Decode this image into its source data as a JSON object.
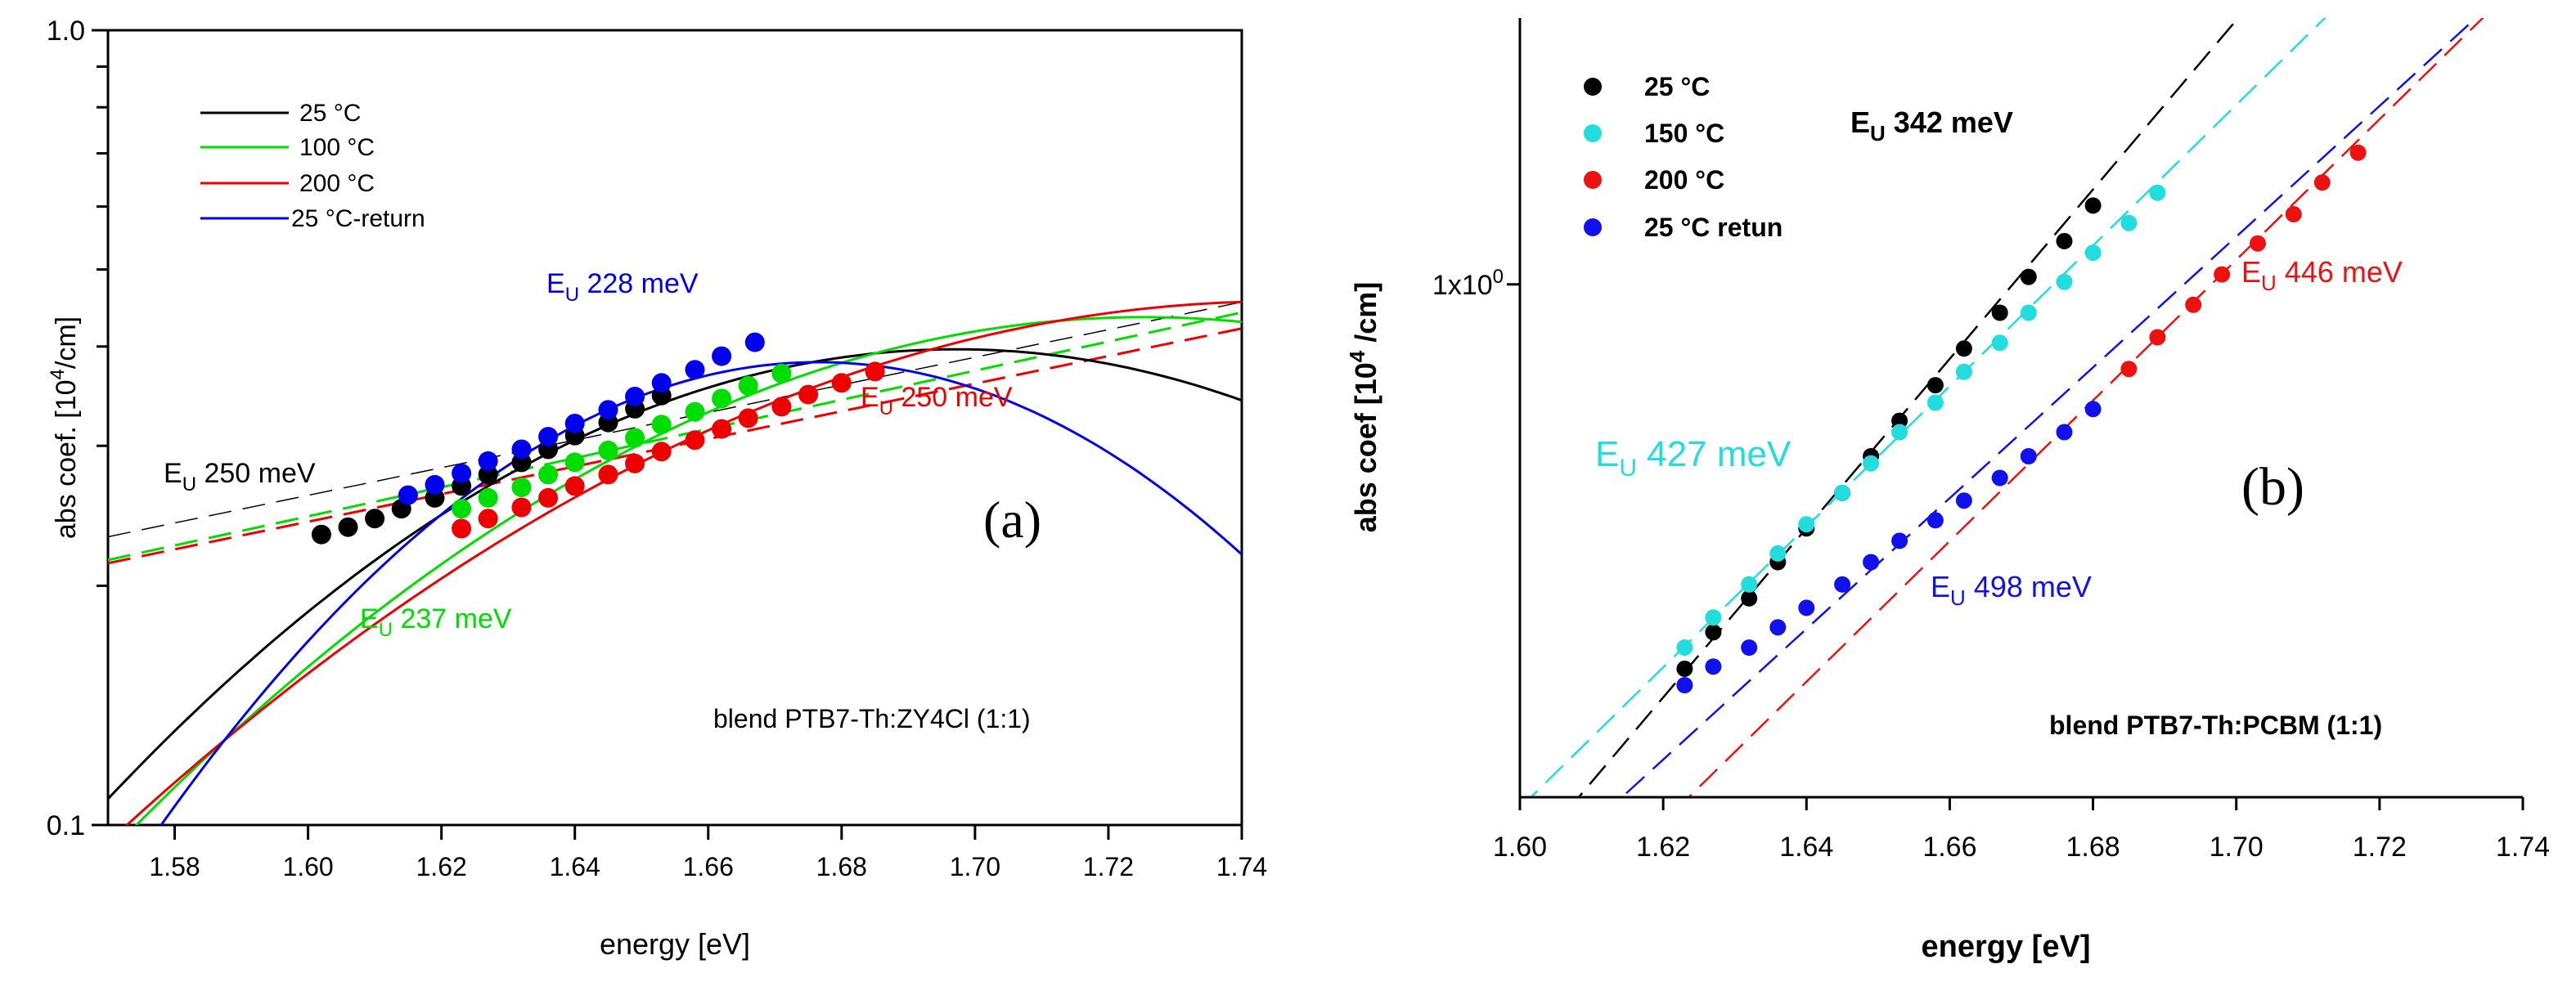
{
  "chart_data": [
    {
      "id": "a",
      "type": "scatter",
      "panel_label": "(a)",
      "xlabel": "energy [eV]",
      "ylabel_main": "abs coef. [10",
      "ylabel_sup": "4",
      "ylabel_rest": "/cm]",
      "xlim": [
        1.57,
        1.74
      ],
      "ylim": [
        0.1,
        1.0
      ],
      "yscale": "log",
      "xticks": [
        1.58,
        1.6,
        1.62,
        1.64,
        1.66,
        1.68,
        1.7,
        1.72,
        1.74
      ],
      "xtick_labels": [
        "1.58",
        "1.60",
        "1.62",
        "1.64",
        "1.66",
        "1.68",
        "1.70",
        "1.72",
        "1.74"
      ],
      "ytick_labels": [
        {
          "value": 0.1,
          "label": "0.1"
        },
        {
          "value": 1.0,
          "label": "1.0"
        }
      ],
      "legend": {
        "placement": "top-left",
        "entries": [
          {
            "label": "25 °C",
            "color": "#000000"
          },
          {
            "label": "100 °C",
            "color": "#00dd00"
          },
          {
            "label": "200 °C",
            "color": "#ee0000"
          },
          {
            "label": " 25 °C-return",
            "color": "#0000ee"
          }
        ]
      },
      "annotation": "blend PTB7-Th:ZY4Cl (1:1)",
      "series": [
        {
          "name": "25 °C",
          "color": "#000000",
          "eu_label": {
            "text": "E",
            "sub": "U",
            "rest": " 250 meV"
          },
          "points_x": [
            1.602,
            1.606,
            1.61,
            1.614,
            1.619,
            1.623,
            1.627,
            1.632,
            1.636,
            1.64,
            1.645,
            1.649,
            1.653
          ],
          "points_y": [
            0.232,
            0.237,
            0.243,
            0.25,
            0.258,
            0.267,
            0.276,
            0.286,
            0.297,
            0.309,
            0.321,
            0.334,
            0.347
          ],
          "curve": {
            "e0": 1.64,
            "a0": 0.305,
            "slope": 4.0,
            "curv": -35
          },
          "tangent": {
            "e0": 1.64,
            "a0": 0.305,
            "eu": 0.25
          }
        },
        {
          "name": "100 °C",
          "color": "#00dd00",
          "eu_label": {
            "text": "E",
            "sub": "U",
            "rest": " 237 meV"
          },
          "points_x": [
            1.623,
            1.627,
            1.632,
            1.636,
            1.64,
            1.645,
            1.649,
            1.653,
            1.658,
            1.662,
            1.666,
            1.671
          ],
          "points_y": [
            0.25,
            0.258,
            0.266,
            0.276,
            0.286,
            0.296,
            0.307,
            0.319,
            0.331,
            0.344,
            0.357,
            0.37
          ],
          "curve": {
            "e0": 1.65,
            "a0": 0.302,
            "slope": 4.22,
            "curv": -28
          },
          "tangent": {
            "e0": 1.65,
            "a0": 0.302,
            "eu": 0.237
          }
        },
        {
          "name": "200 °C",
          "color": "#ee0000",
          "eu_label": {
            "text": "E",
            "sub": "U",
            "rest": " 250 meV"
          },
          "points_x": [
            1.623,
            1.627,
            1.632,
            1.636,
            1.64,
            1.645,
            1.649,
            1.653,
            1.658,
            1.662,
            1.666,
            1.671,
            1.675,
            1.68,
            1.685
          ],
          "points_y": [
            0.236,
            0.243,
            0.251,
            0.258,
            0.267,
            0.276,
            0.285,
            0.295,
            0.305,
            0.315,
            0.325,
            0.336,
            0.348,
            0.36,
            0.372
          ],
          "curve": {
            "e0": 1.655,
            "a0": 0.3,
            "slope": 4.0,
            "curv": -22
          },
          "tangent": {
            "e0": 1.655,
            "a0": 0.3,
            "eu": 0.25
          }
        },
        {
          "name": " 25 °C-return",
          "color": "#0000ee",
          "eu_label": {
            "text": "E",
            "sub": "U",
            "rest": " 228 meV"
          },
          "points_x": [
            1.615,
            1.619,
            1.623,
            1.627,
            1.632,
            1.636,
            1.64,
            1.645,
            1.649,
            1.653,
            1.658,
            1.662,
            1.667
          ],
          "points_y": [
            0.26,
            0.268,
            0.277,
            0.287,
            0.297,
            0.308,
            0.32,
            0.333,
            0.346,
            0.36,
            0.374,
            0.389,
            0.405
          ],
          "curve": {
            "e0": 1.64,
            "a0": 0.318,
            "slope": 4.38,
            "curv": -60
          },
          "tangent": null
        }
      ]
    },
    {
      "id": "b",
      "type": "scatter",
      "panel_label": "(b)",
      "xlabel": "energy [eV]",
      "ylabel_main": "abs coef [10",
      "ylabel_sup": "4",
      "ylabel_rest": " /cm]",
      "xlim": [
        1.6,
        1.74
      ],
      "ylim": [
        0.36,
        1.7
      ],
      "yscale": "log",
      "xticks": [
        1.6,
        1.62,
        1.64,
        1.66,
        1.68,
        1.7,
        1.72,
        1.74
      ],
      "xtick_labels": [
        "1.60",
        "1.62",
        "1.64",
        "1.66",
        "1.68",
        "1.70",
        "1.72",
        "1.74"
      ],
      "ytick_labels": [
        {
          "value": 1.0,
          "label": "1x10",
          "sup": "0"
        }
      ],
      "legend": {
        "placement": "top-left",
        "entries": [
          {
            "label": "25 °C",
            "color": "#000000"
          },
          {
            "label": "150 °C",
            "color": "#22dddd"
          },
          {
            "label": "200 °C",
            "color": "#ee1111"
          },
          {
            "label": "25 °C retun",
            "color": "#1111ee"
          }
        ]
      },
      "annotation": "blend PTB7-Th:PCBM (1:1)",
      "series": [
        {
          "name": "25 °C",
          "color": "#000000",
          "eu_label": {
            "text": "E",
            "sub": "U",
            "rest": " 342 meV"
          },
          "points_x": [
            1.623,
            1.627,
            1.632,
            1.636,
            1.64,
            1.645,
            1.649,
            1.653,
            1.658,
            1.662,
            1.667,
            1.671,
            1.676,
            1.68
          ],
          "points_y": [
            0.465,
            0.5,
            0.535,
            0.575,
            0.615,
            0.66,
            0.71,
            0.762,
            0.818,
            0.88,
            0.945,
            1.015,
            1.09,
            1.17
          ],
          "fit": {
            "e0": 1.6513,
            "a0": 0.7445,
            "eu": 0.0593,
            "xmin": 1.6,
            "xmax": 1.74
          }
        },
        {
          "name": "150 °C",
          "color": "#22dddd",
          "eu_label": {
            "text": "E",
            "sub": "U",
            "rest": " 427 meV"
          },
          "points_x": [
            1.623,
            1.627,
            1.632,
            1.636,
            1.64,
            1.645,
            1.649,
            1.653,
            1.658,
            1.662,
            1.667,
            1.671,
            1.676,
            1.68,
            1.685,
            1.689
          ],
          "points_y": [
            0.485,
            0.515,
            0.55,
            0.585,
            0.62,
            0.66,
            0.7,
            0.745,
            0.79,
            0.84,
            0.89,
            0.945,
            1.005,
            1.065,
            1.13,
            1.2
          ],
          "fit": {
            "e0": 1.656,
            "a0": 0.772,
            "eu": 0.0714,
            "xmin": 1.6,
            "xmax": 1.74
          }
        },
        {
          "name": "200 °C",
          "color": "#ee1111",
          "eu_label": {
            "text": "E",
            "sub": "U",
            "rest": " 446 meV"
          },
          "points_x": [
            1.685,
            1.689,
            1.694,
            1.698,
            1.703,
            1.708,
            1.712,
            1.717
          ],
          "points_y": [
            0.845,
            0.9,
            0.96,
            1.02,
            1.085,
            1.15,
            1.225,
            1.3
          ],
          "fit": {
            "e0": 1.7,
            "a0": 1.05,
            "eu": 0.0714,
            "xmin": 1.6,
            "xmax": 1.74
          }
        },
        {
          "name": "25 °C retun",
          "color": "#1111ee",
          "eu_label": {
            "text": "E",
            "sub": "U",
            "rest": " 498 meV"
          },
          "points_x": [
            1.623,
            1.627,
            1.632,
            1.636,
            1.64,
            1.645,
            1.649,
            1.653,
            1.658,
            1.662,
            1.667,
            1.671,
            1.676,
            1.68
          ],
          "points_y": [
            0.45,
            0.467,
            0.485,
            0.505,
            0.525,
            0.55,
            0.575,
            0.6,
            0.625,
            0.65,
            0.68,
            0.71,
            0.745,
            0.78
          ],
          "fit": {
            "e0": 1.655,
            "a0": 0.612,
            "eu": 0.0768,
            "xmin": 1.6,
            "xmax": 1.74
          }
        }
      ]
    }
  ]
}
